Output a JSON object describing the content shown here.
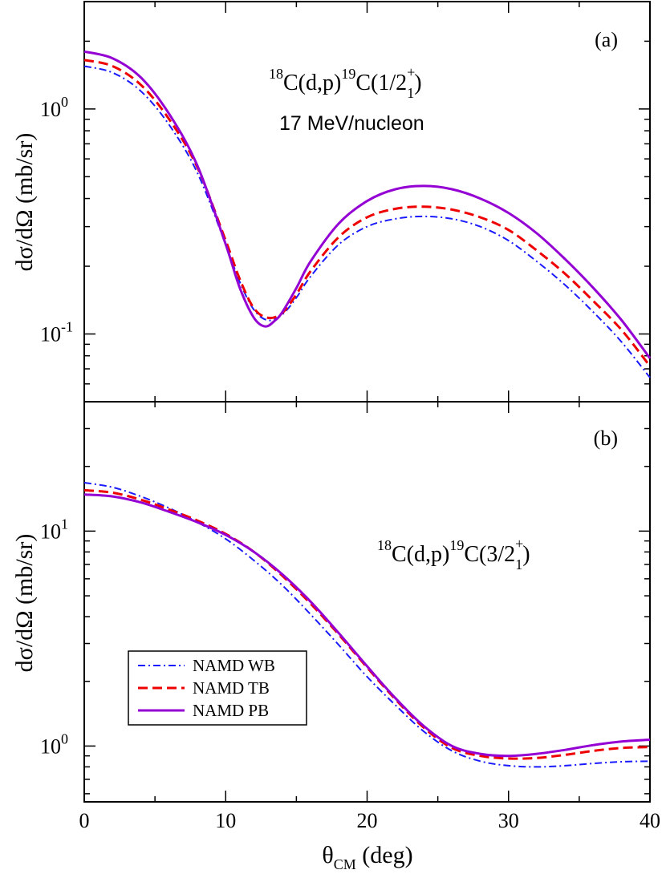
{
  "chart_data": [
    {
      "type": "line",
      "panel_tag": "(a)",
      "reaction": {
        "pre": "18",
        "a": "C(d,p)",
        "mid": "19",
        "b": "C(1/2",
        "sup": "+",
        "sub": "1",
        "c": ")"
      },
      "energy_label": "17 MeV/nucleon",
      "ylabel": "dσ/dΩ (mb/sr)",
      "xlim": [
        0,
        40
      ],
      "ylim": [
        0.05,
        3.0
      ],
      "yscale": "log",
      "yticks": [
        {
          "base": "10",
          "exp": "-1",
          "value": 0.1
        },
        {
          "base": "10",
          "exp": "0",
          "value": 1
        }
      ],
      "series": [
        {
          "name": "NAMD WB",
          "color": "#1a1aff",
          "dash": "dashdot",
          "x": [
            0,
            2,
            4,
            6,
            8,
            10,
            11,
            12,
            13,
            14,
            15,
            16,
            18,
            20,
            22,
            24,
            26,
            28,
            30,
            32,
            34,
            36,
            38,
            40
          ],
          "y": [
            1.55,
            1.45,
            1.2,
            0.85,
            0.52,
            0.25,
            0.17,
            0.128,
            0.115,
            0.122,
            0.145,
            0.18,
            0.25,
            0.3,
            0.325,
            0.333,
            0.325,
            0.3,
            0.26,
            0.21,
            0.165,
            0.125,
            0.092,
            0.064
          ]
        },
        {
          "name": "NAMD TB",
          "color": "#ee0000",
          "dash": "dashed",
          "x": [
            0,
            2,
            4,
            6,
            8,
            10,
            11,
            12,
            13,
            14,
            15,
            16,
            18,
            20,
            22,
            24,
            26,
            28,
            30,
            32,
            34,
            36,
            38,
            40
          ],
          "y": [
            1.65,
            1.55,
            1.28,
            0.9,
            0.55,
            0.26,
            0.175,
            0.13,
            0.118,
            0.124,
            0.15,
            0.19,
            0.27,
            0.33,
            0.36,
            0.368,
            0.357,
            0.33,
            0.29,
            0.235,
            0.185,
            0.14,
            0.104,
            0.072
          ]
        },
        {
          "name": "NAMD PB",
          "color": "#9400d3",
          "dash": "solid",
          "x": [
            0,
            2,
            4,
            6,
            8,
            10,
            11,
            12,
            12.8,
            13.5,
            14,
            15,
            16,
            18,
            20,
            22,
            24,
            26,
            28,
            30,
            32,
            34,
            36,
            38,
            40
          ],
          "y": [
            1.8,
            1.68,
            1.38,
            0.95,
            0.56,
            0.25,
            0.16,
            0.118,
            0.108,
            0.115,
            0.125,
            0.16,
            0.21,
            0.31,
            0.39,
            0.44,
            0.455,
            0.44,
            0.4,
            0.345,
            0.28,
            0.215,
            0.16,
            0.115,
            0.078
          ]
        }
      ]
    },
    {
      "type": "line",
      "panel_tag": "(b)",
      "reaction": {
        "pre": "18",
        "a": "C(d,p)",
        "mid": "19",
        "b": "C(3/2",
        "sup": "+",
        "sub": "1",
        "c": ")"
      },
      "ylabel": "dσ/dΩ (mb/sr)",
      "xlabel": {
        "main": "θ",
        "sub": "CM",
        "rest": " (deg)"
      },
      "xlim": [
        0,
        40
      ],
      "xticks": [
        "0",
        "10",
        "20",
        "30",
        "40"
      ],
      "ylim": [
        0.55,
        40
      ],
      "yscale": "log",
      "yticks": [
        {
          "base": "10",
          "exp": "0",
          "value": 1
        },
        {
          "base": "10",
          "exp": "1",
          "value": 10
        }
      ],
      "legend": {
        "position": "lower-left",
        "entries": [
          "NAMD WB",
          "NAMD TB",
          "NAMD PB"
        ]
      },
      "series": [
        {
          "name": "NAMD WB",
          "color": "#1a1aff",
          "dash": "dashdot",
          "x": [
            0,
            2,
            4,
            6,
            8,
            10,
            12,
            14,
            16,
            18,
            20,
            22,
            24,
            26,
            28,
            30,
            32,
            34,
            36,
            38,
            40
          ],
          "y": [
            16.8,
            16.0,
            14.5,
            12.8,
            11.0,
            9.2,
            7.3,
            5.6,
            4.1,
            2.95,
            2.1,
            1.55,
            1.17,
            0.95,
            0.85,
            0.81,
            0.8,
            0.81,
            0.83,
            0.845,
            0.85
          ]
        },
        {
          "name": "NAMD TB",
          "color": "#ee0000",
          "dash": "dashed",
          "x": [
            0,
            2,
            4,
            6,
            8,
            10,
            12,
            14,
            16,
            18,
            20,
            22,
            24,
            26,
            28,
            30,
            32,
            34,
            36,
            38,
            40
          ],
          "y": [
            15.5,
            15.1,
            14.0,
            12.6,
            11.2,
            9.7,
            8.0,
            6.2,
            4.6,
            3.3,
            2.32,
            1.65,
            1.22,
            0.98,
            0.9,
            0.875,
            0.88,
            0.91,
            0.95,
            0.98,
            0.99
          ]
        },
        {
          "name": "NAMD PB",
          "color": "#9400d3",
          "dash": "solid",
          "x": [
            0,
            2,
            4,
            6,
            8,
            10,
            12,
            14,
            16,
            18,
            20,
            22,
            24,
            26,
            28,
            30,
            32,
            34,
            36,
            38,
            40
          ],
          "y": [
            14.8,
            14.5,
            13.6,
            12.3,
            11.0,
            9.6,
            8.0,
            6.3,
            4.7,
            3.35,
            2.35,
            1.67,
            1.24,
            1.0,
            0.92,
            0.9,
            0.92,
            0.96,
            1.01,
            1.05,
            1.07
          ]
        }
      ]
    }
  ]
}
